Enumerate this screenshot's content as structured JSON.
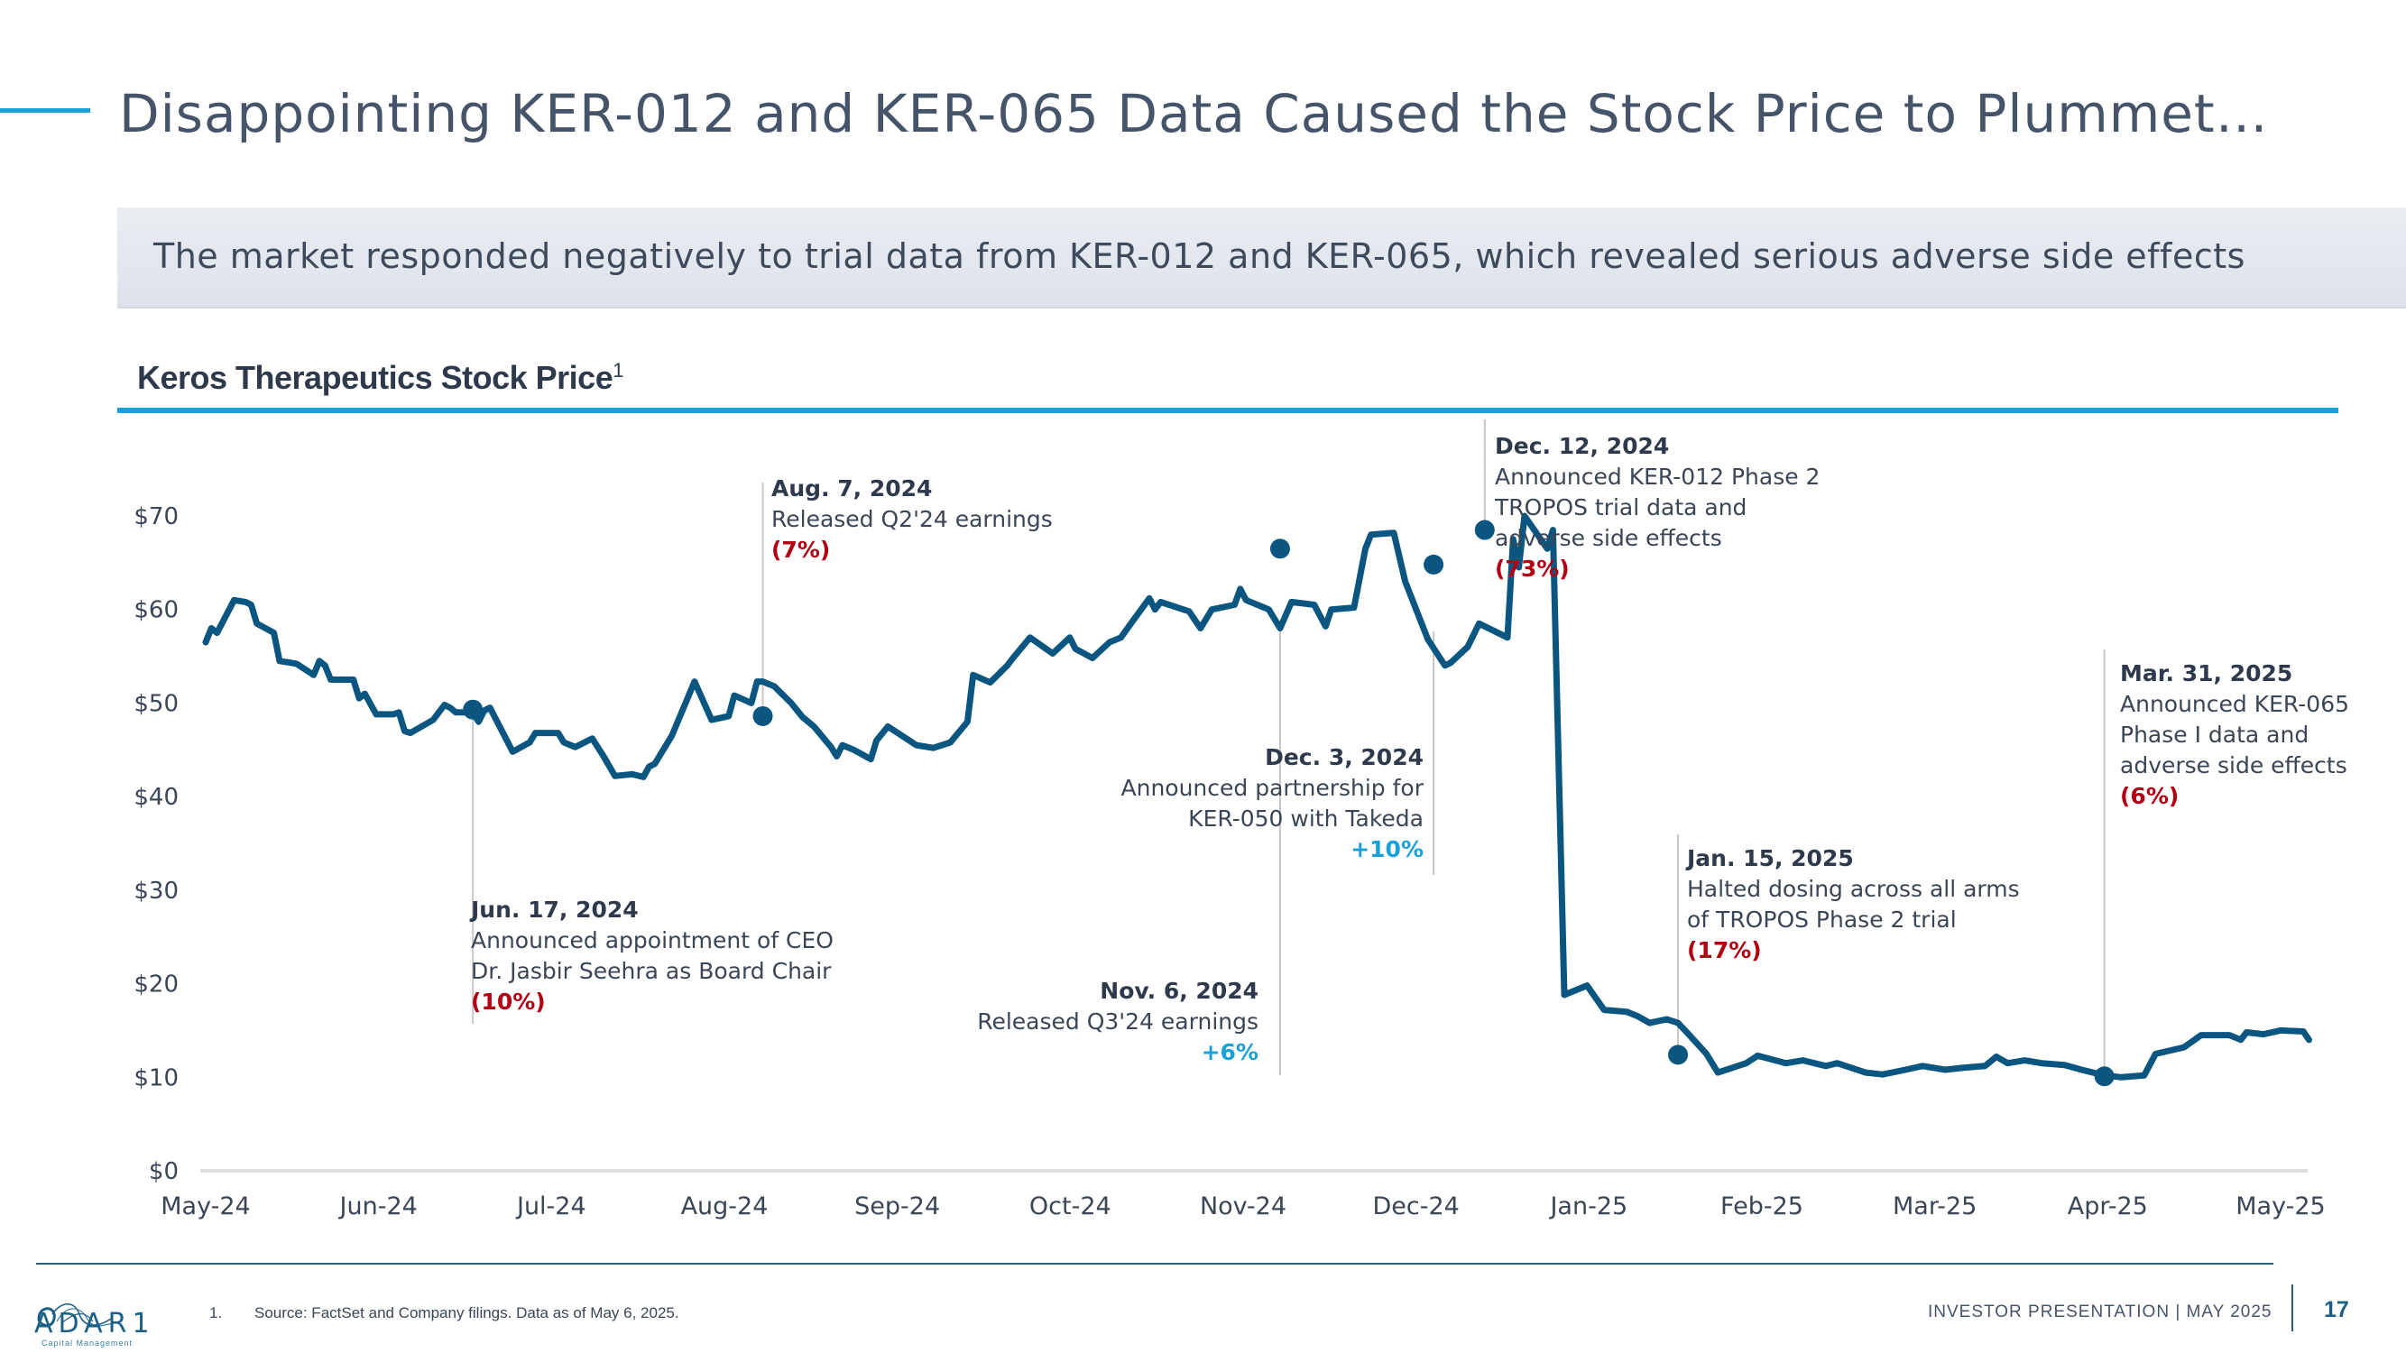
{
  "header": {
    "title": "Disappointing KER-012 and KER-065 Data Caused the Stock Price to Plummet…",
    "subtitle": "The market responded negatively to trial data from KER-012 and KER-065, which revealed serious adverse side effects"
  },
  "chart_heading": {
    "text": "Keros Therapeutics Stock Price",
    "footnote_ref": "1"
  },
  "colors": {
    "line": "#0b5680",
    "accent": "#1aa0d8",
    "negative": "#b00012",
    "positive": "#1aa0d8",
    "text": "#3a4556"
  },
  "chart_data": {
    "type": "line",
    "title": "Keros Therapeutics Stock Price",
    "xlabel": "",
    "ylabel": "",
    "ylim": [
      0,
      70
    ],
    "yticks": [
      0,
      10,
      20,
      30,
      40,
      50,
      60,
      70
    ],
    "ytick_labels": [
      "$0",
      "$10",
      "$20",
      "$30",
      "$40",
      "$50",
      "$60",
      "$70"
    ],
    "x_range": [
      "2024-05-01",
      "2025-05-01"
    ],
    "xtick_labels": [
      "May-24",
      "Jun-24",
      "Jul-24",
      "Aug-24",
      "Sep-24",
      "Oct-24",
      "Nov-24",
      "Dec-24",
      "Jan-25",
      "Feb-25",
      "Mar-25",
      "Apr-25",
      "May-25"
    ],
    "grid": false,
    "series": [
      {
        "name": "Keros Therapeutics Stock Price",
        "points": [
          [
            "2024-05-01",
            56.5
          ],
          [
            "2024-05-02",
            58.0
          ],
          [
            "2024-05-03",
            57.5
          ],
          [
            "2024-05-06",
            61.0
          ],
          [
            "2024-05-08",
            60.8
          ],
          [
            "2024-05-09",
            60.5
          ],
          [
            "2024-05-10",
            58.5
          ],
          [
            "2024-05-13",
            57.5
          ],
          [
            "2024-05-14",
            54.5
          ],
          [
            "2024-05-16",
            54.3
          ],
          [
            "2024-05-17",
            54.2
          ],
          [
            "2024-05-20",
            53.0
          ],
          [
            "2024-05-21",
            54.5
          ],
          [
            "2024-05-22",
            54.0
          ],
          [
            "2024-05-23",
            52.5
          ],
          [
            "2024-05-27",
            52.5
          ],
          [
            "2024-05-28",
            50.5
          ],
          [
            "2024-05-29",
            51.0
          ],
          [
            "2024-05-31",
            48.8
          ],
          [
            "2024-06-03",
            48.8
          ],
          [
            "2024-06-04",
            49.0
          ],
          [
            "2024-06-05",
            47.0
          ],
          [
            "2024-06-06",
            46.8
          ],
          [
            "2024-06-10",
            48.2
          ],
          [
            "2024-06-12",
            49.8
          ],
          [
            "2024-06-13",
            49.5
          ],
          [
            "2024-06-14",
            49.0
          ],
          [
            "2024-06-17",
            49.0
          ],
          [
            "2024-06-18",
            48.0
          ],
          [
            "2024-06-19",
            49.2
          ],
          [
            "2024-06-20",
            49.5
          ],
          [
            "2024-06-24",
            44.8
          ],
          [
            "2024-06-27",
            45.8
          ],
          [
            "2024-06-28",
            46.8
          ],
          [
            "2024-07-02",
            46.8
          ],
          [
            "2024-07-03",
            45.8
          ],
          [
            "2024-07-05",
            45.3
          ],
          [
            "2024-07-08",
            46.2
          ],
          [
            "2024-07-10",
            44.3
          ],
          [
            "2024-07-12",
            42.2
          ],
          [
            "2024-07-15",
            42.4
          ],
          [
            "2024-07-17",
            42.1
          ],
          [
            "2024-07-18",
            43.2
          ],
          [
            "2024-07-19",
            43.5
          ],
          [
            "2024-07-22",
            46.5
          ],
          [
            "2024-07-26",
            52.3
          ],
          [
            "2024-07-29",
            48.2
          ],
          [
            "2024-08-01",
            48.6
          ],
          [
            "2024-08-02",
            50.8
          ],
          [
            "2024-08-05",
            50.0
          ],
          [
            "2024-08-06",
            52.3
          ],
          [
            "2024-08-07",
            52.3
          ],
          [
            "2024-08-09",
            51.8
          ],
          [
            "2024-08-12",
            50.0
          ],
          [
            "2024-08-14",
            48.5
          ],
          [
            "2024-08-16",
            47.5
          ],
          [
            "2024-08-19",
            45.3
          ],
          [
            "2024-08-20",
            44.3
          ],
          [
            "2024-08-21",
            45.5
          ],
          [
            "2024-08-23",
            45.0
          ],
          [
            "2024-08-26",
            44.0
          ],
          [
            "2024-08-27",
            46.0
          ],
          [
            "2024-08-29",
            47.5
          ],
          [
            "2024-09-03",
            45.5
          ],
          [
            "2024-09-06",
            45.2
          ],
          [
            "2024-09-09",
            45.8
          ],
          [
            "2024-09-12",
            48.0
          ],
          [
            "2024-09-13",
            53.0
          ],
          [
            "2024-09-16",
            52.2
          ],
          [
            "2024-09-19",
            54.0
          ],
          [
            "2024-09-20",
            54.8
          ],
          [
            "2024-09-23",
            57.0
          ],
          [
            "2024-09-27",
            55.3
          ],
          [
            "2024-09-30",
            57.0
          ],
          [
            "2024-10-01",
            55.8
          ],
          [
            "2024-10-04",
            54.8
          ],
          [
            "2024-10-07",
            56.5
          ],
          [
            "2024-10-09",
            57.0
          ],
          [
            "2024-10-11",
            58.7
          ],
          [
            "2024-10-14",
            61.2
          ],
          [
            "2024-10-15",
            60.0
          ],
          [
            "2024-10-16",
            60.8
          ],
          [
            "2024-10-21",
            59.8
          ],
          [
            "2024-10-23",
            58.0
          ],
          [
            "2024-10-25",
            60.0
          ],
          [
            "2024-10-29",
            60.5
          ],
          [
            "2024-10-30",
            62.2
          ],
          [
            "2024-10-31",
            61.0
          ],
          [
            "2024-11-04",
            60.0
          ],
          [
            "2024-11-06",
            58.0
          ],
          [
            "2024-11-08",
            60.8
          ],
          [
            "2024-11-12",
            60.5
          ],
          [
            "2024-11-14",
            58.2
          ],
          [
            "2024-11-15",
            60.0
          ],
          [
            "2024-11-19",
            60.2
          ],
          [
            "2024-11-21",
            66.5
          ],
          [
            "2024-11-22",
            68.0
          ],
          [
            "2024-11-26",
            68.2
          ],
          [
            "2024-11-28",
            63.0
          ],
          [
            "2024-12-02",
            56.8
          ],
          [
            "2024-12-05",
            54.0
          ],
          [
            "2024-12-06",
            54.3
          ],
          [
            "2024-12-09",
            56.0
          ],
          [
            "2024-12-11",
            58.5
          ],
          [
            "2024-12-16",
            57.0
          ],
          [
            "2024-12-17",
            67.5
          ],
          [
            "2024-12-18",
            64.5
          ],
          [
            "2024-12-19",
            70.0
          ],
          [
            "2024-12-23",
            66.5
          ],
          [
            "2024-12-24",
            68.5
          ],
          [
            "2024-12-26",
            18.8
          ],
          [
            "2024-12-30",
            19.8
          ],
          [
            "2025-01-02",
            17.2
          ],
          [
            "2025-01-06",
            17.0
          ],
          [
            "2025-01-08",
            16.5
          ],
          [
            "2025-01-10",
            15.8
          ],
          [
            "2025-01-13",
            16.2
          ],
          [
            "2025-01-15",
            15.8
          ],
          [
            "2025-01-17",
            14.5
          ],
          [
            "2025-01-20",
            12.5
          ],
          [
            "2025-01-22",
            10.5
          ],
          [
            "2025-01-27",
            11.5
          ],
          [
            "2025-01-29",
            12.3
          ],
          [
            "2025-02-03",
            11.5
          ],
          [
            "2025-02-06",
            11.8
          ],
          [
            "2025-02-10",
            11.2
          ],
          [
            "2025-02-12",
            11.5
          ],
          [
            "2025-02-17",
            10.5
          ],
          [
            "2025-02-20",
            10.3
          ],
          [
            "2025-02-24",
            10.8
          ],
          [
            "2025-02-27",
            11.2
          ],
          [
            "2025-03-03",
            10.8
          ],
          [
            "2025-03-06",
            11.0
          ],
          [
            "2025-03-10",
            11.2
          ],
          [
            "2025-03-12",
            12.2
          ],
          [
            "2025-03-14",
            11.5
          ],
          [
            "2025-03-17",
            11.8
          ],
          [
            "2025-03-20",
            11.5
          ],
          [
            "2025-03-24",
            11.3
          ],
          [
            "2025-03-27",
            10.8
          ],
          [
            "2025-03-31",
            10.2
          ],
          [
            "2025-04-03",
            10.0
          ],
          [
            "2025-04-07",
            10.2
          ],
          [
            "2025-04-09",
            12.5
          ],
          [
            "2025-04-14",
            13.2
          ],
          [
            "2025-04-17",
            14.5
          ],
          [
            "2025-04-22",
            14.5
          ],
          [
            "2025-04-24",
            14.0
          ],
          [
            "2025-04-25",
            14.8
          ],
          [
            "2025-04-28",
            14.6
          ],
          [
            "2025-05-01",
            15.0
          ],
          [
            "2025-05-05",
            14.9
          ],
          [
            "2025-05-06",
            14.0
          ]
        ]
      }
    ],
    "annotations": [
      {
        "date": "2024-06-17",
        "price": 49.3,
        "label_date": "Jun. 17, 2024",
        "lines": [
          "Announced appointment of CEO",
          "Dr. Jasbir Seehra as Board Chair"
        ],
        "change": "(10%)",
        "direction": "negative",
        "placement": "below",
        "align": "left"
      },
      {
        "date": "2024-08-07",
        "price": 48.6,
        "label_date": "Aug. 7, 2024",
        "lines": [
          "Released Q2'24 earnings"
        ],
        "change": "(7%)",
        "direction": "negative",
        "placement": "above",
        "align": "left"
      },
      {
        "date": "2024-11-06",
        "price": 66.5,
        "label_date": "Nov. 6, 2024",
        "lines": [
          "Released Q3'24 earnings"
        ],
        "change": "+6%",
        "direction": "positive",
        "placement": "below",
        "align": "right"
      },
      {
        "date": "2024-12-03",
        "price": 64.8,
        "label_date": "Dec. 3, 2024",
        "lines": [
          "Announced partnership for",
          "KER-050 with Takeda"
        ],
        "change": "+10%",
        "direction": "positive",
        "placement": "below",
        "align": "right"
      },
      {
        "date": "2024-12-12",
        "price": 68.5,
        "label_date": "Dec. 12, 2024",
        "lines": [
          "Announced KER-012 Phase 2",
          "TROPOS trial data and",
          "adverse side effects"
        ],
        "change": "(73%)",
        "direction": "negative",
        "placement": "above",
        "align": "left"
      },
      {
        "date": "2025-01-15",
        "price": 12.4,
        "label_date": "Jan. 15, 2025",
        "lines": [
          "Halted dosing across all arms",
          "of TROPOS Phase 2 trial"
        ],
        "change": "(17%)",
        "direction": "negative",
        "placement": "above",
        "align": "left"
      },
      {
        "date": "2025-03-31",
        "price": 10.1,
        "label_date": "Mar. 31, 2025",
        "lines": [
          "Announced KER-065",
          "Phase I data and",
          "adverse side effects"
        ],
        "change": "(6%)",
        "direction": "negative",
        "placement": "above",
        "align": "left"
      }
    ]
  },
  "footer": {
    "logo_name": "ADAR1",
    "logo_sub": "Capital Management",
    "footnote_number": "1.",
    "footnote_text": "Source: FactSet and Company filings. Data as of May 6, 2025.",
    "presentation_label": "INVESTOR PRESENTATION  |  MAY 2025",
    "page_number": "17"
  }
}
